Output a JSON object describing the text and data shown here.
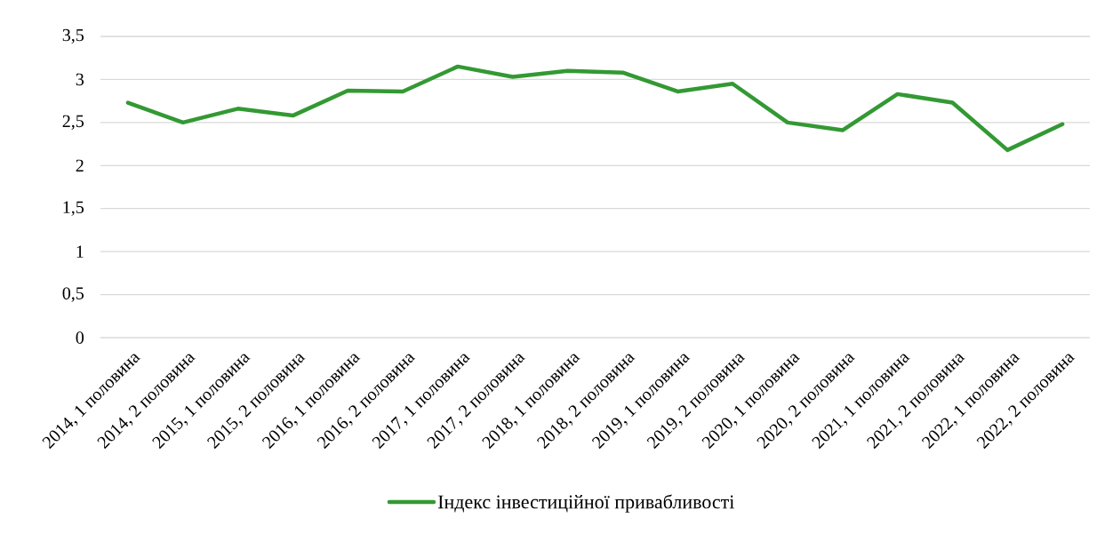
{
  "chart_data": {
    "type": "line",
    "categories": [
      "2014, 1 половина",
      "2014, 2 половина",
      "2015, 1 половина",
      "2015, 2 половина",
      "2016, 1 половина",
      "2016, 2 половина",
      "2017, 1 половина",
      "2017, 2 половина",
      "2018, 1 половина",
      "2018, 2 половина",
      "2019, 1 половина",
      "2019, 2 половина",
      "2020, 1 половина",
      "2020, 2 половина",
      "2021, 1 половина",
      "2021, 2 половина",
      "2022, 1 половина",
      "2022, 2 половина"
    ],
    "series": [
      {
        "name": "Індекс інвестиційної привабливості",
        "color": "#339933",
        "values": [
          2.73,
          2.5,
          2.66,
          2.58,
          2.87,
          2.86,
          3.15,
          3.03,
          3.1,
          3.08,
          2.86,
          2.95,
          2.5,
          2.41,
          2.83,
          2.73,
          2.18,
          2.48
        ]
      }
    ],
    "ylim": [
      0,
      3.5
    ],
    "yticks": [
      0,
      {
        "value": 0.5,
        "label": "0,5"
      },
      1,
      {
        "value": 1.5,
        "label": "1,5"
      },
      2,
      {
        "value": 2.5,
        "label": "2,5"
      },
      3,
      {
        "value": 3.5,
        "label": "3,5"
      }
    ],
    "grid": "y",
    "legend": "bottom",
    "line_style": "solid"
  }
}
